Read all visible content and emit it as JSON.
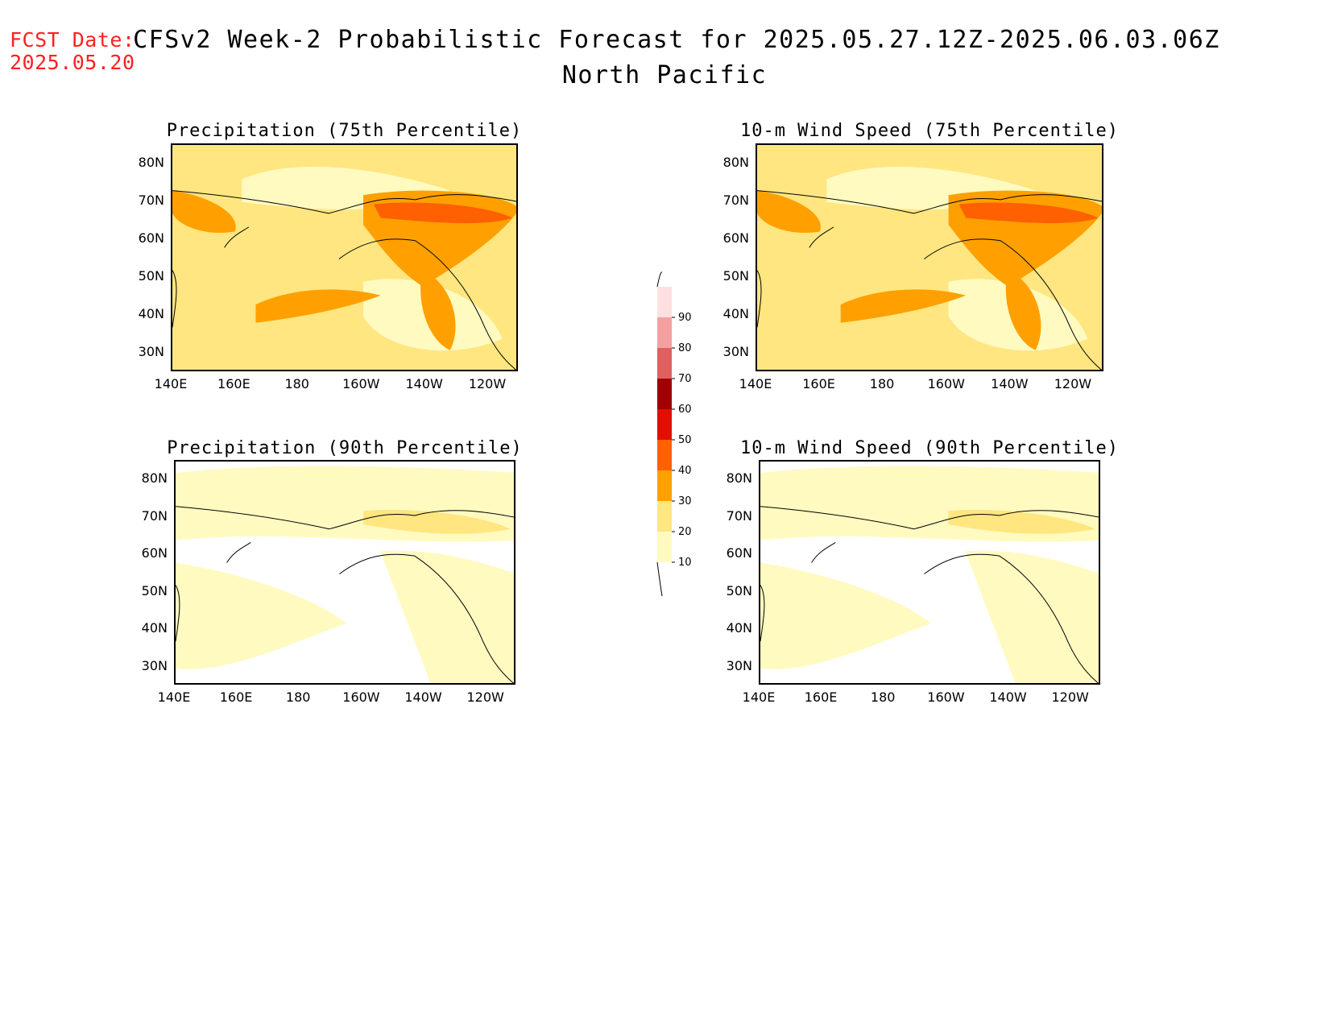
{
  "header": {
    "fcst_label": "FCST Date:",
    "fcst_date": "2025.05.20",
    "title": "CFSv2 Week-2 Probabilistic Forecast for 2025.05.27.12Z-2025.06.03.06Z",
    "region": "North Pacific"
  },
  "panels": [
    {
      "id": "precip75",
      "title": "Precipitation (75th Percentile)",
      "intensity": "high"
    },
    {
      "id": "wind75",
      "title": "10-m Wind Speed (75th Percentile)",
      "intensity": "high"
    },
    {
      "id": "precip90",
      "title": "Precipitation (90th Percentile)",
      "intensity": "low"
    },
    {
      "id": "wind90",
      "title": "10-m Wind Speed (90th Percentile)",
      "intensity": "low"
    }
  ],
  "axes": {
    "lon_ticks": [
      "140E",
      "160E",
      "180",
      "160W",
      "140W",
      "120W"
    ],
    "lat_ticks": [
      "80N",
      "70N",
      "60N",
      "50N",
      "40N",
      "30N"
    ]
  },
  "colorbar": {
    "levels": [
      "10",
      "20",
      "30",
      "40",
      "50",
      "60",
      "70",
      "80",
      "90"
    ],
    "colors": [
      "#fffac0",
      "#ffe680",
      "#ffa000",
      "#ff6000",
      "#e01000",
      "#a00000",
      "#e06060",
      "#f4a0a0",
      "#ffe0e0"
    ]
  }
}
